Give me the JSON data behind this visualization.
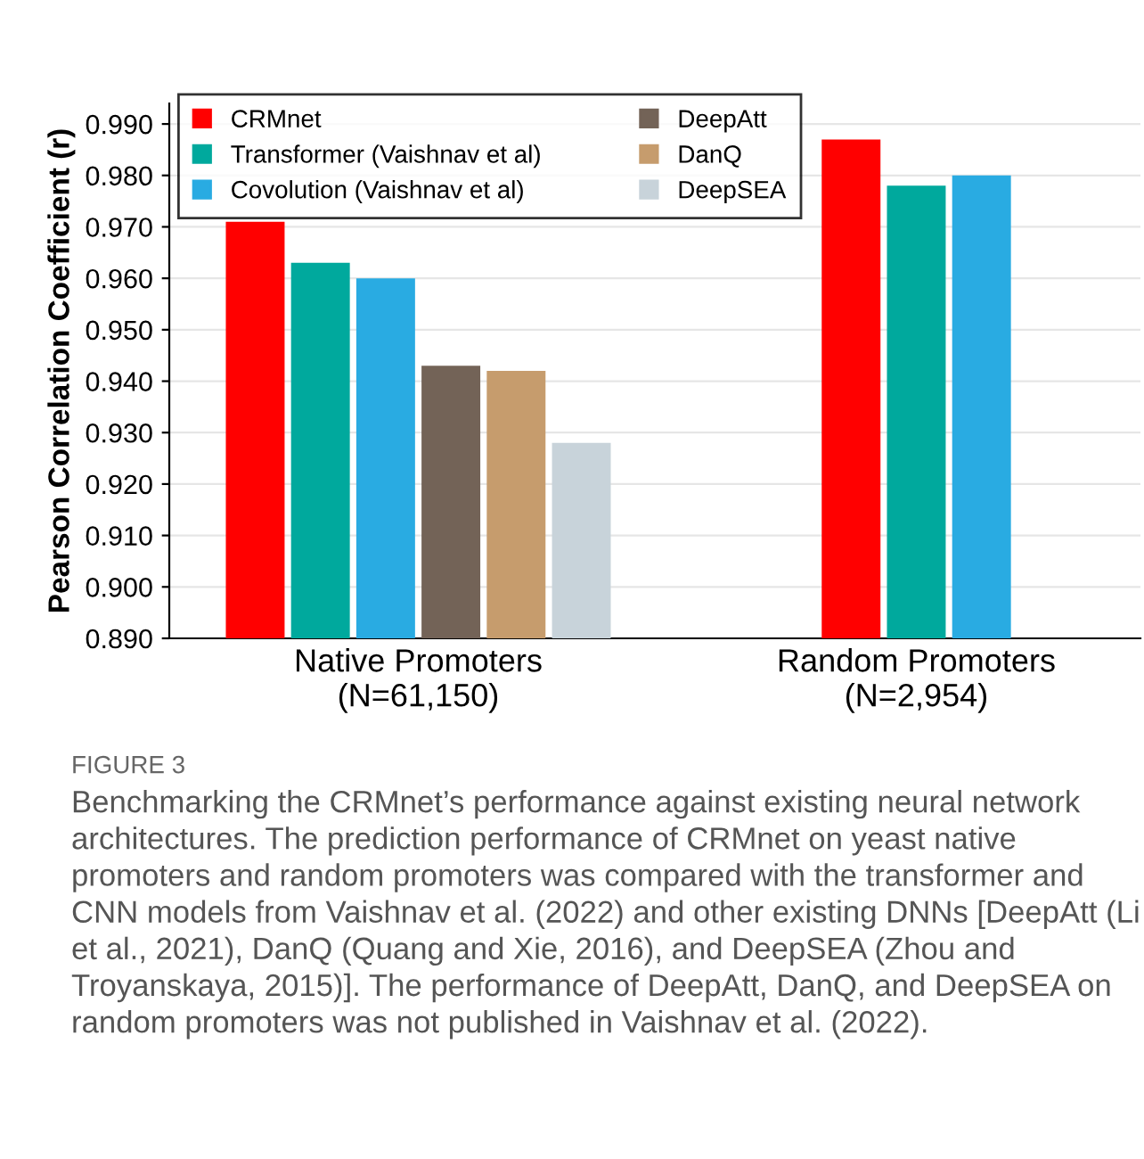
{
  "chart_data": {
    "type": "bar",
    "ylabel": "Pearson Correlation Coefficient (r)",
    "categories": [
      "Native Promoters\n(N=61,150)",
      "Random Promoters\n(N=2,954)"
    ],
    "series": [
      {
        "name": "CRMnet",
        "color": "#ff0000",
        "values": [
          0.971,
          0.987
        ]
      },
      {
        "name": "Transformer (Vaishnav et al)",
        "color": "#00a99d",
        "values": [
          0.963,
          0.978
        ]
      },
      {
        "name": "Covolution (Vaishnav et al)",
        "color": "#29abe2",
        "values": [
          0.96,
          0.98
        ]
      },
      {
        "name": "DeepAtt",
        "color": "#736357",
        "values": [
          0.943,
          null
        ]
      },
      {
        "name": "DanQ",
        "color": "#c69c6d",
        "values": [
          0.942,
          null
        ]
      },
      {
        "name": "DeepSEA",
        "color": "#c8d3da",
        "values": [
          0.928,
          null
        ]
      }
    ],
    "ylim": [
      0.89,
      0.994
    ],
    "yticks": [
      {
        "value": 0.89,
        "label": "0.890"
      },
      {
        "value": 0.9,
        "label": "0.900"
      },
      {
        "value": 0.91,
        "label": "0.910"
      },
      {
        "value": 0.92,
        "label": "0.920"
      },
      {
        "value": 0.93,
        "label": "0.930"
      },
      {
        "value": 0.94,
        "label": "0.940"
      },
      {
        "value": 0.95,
        "label": "0.950"
      },
      {
        "value": 0.96,
        "label": "0.960"
      },
      {
        "value": 0.97,
        "label": "0.970"
      },
      {
        "value": 0.98,
        "label": "0.980"
      },
      {
        "value": 0.99,
        "label": "0.990"
      }
    ],
    "grid": "y",
    "legend": "top",
    "annotations": [
      "FIGURE 3",
      "Benchmarking the CRMnet’s performance against existing neural network architectures. The prediction performance of CRMnet on yeast native promoters and random promoters was compared with the transformer and CNN models from Vaishnav et al. (2022) and other existing DNNs [DeepAtt (Li et al., 2021), DanQ (Quang and Xie, 2016), and DeepSEA (Zhou and Troyanskaya, 2015)]. The performance of DeepAtt, DanQ, and DeepSEA on random promoters was not published in Vaishnav et al. (2022)."
    ]
  }
}
